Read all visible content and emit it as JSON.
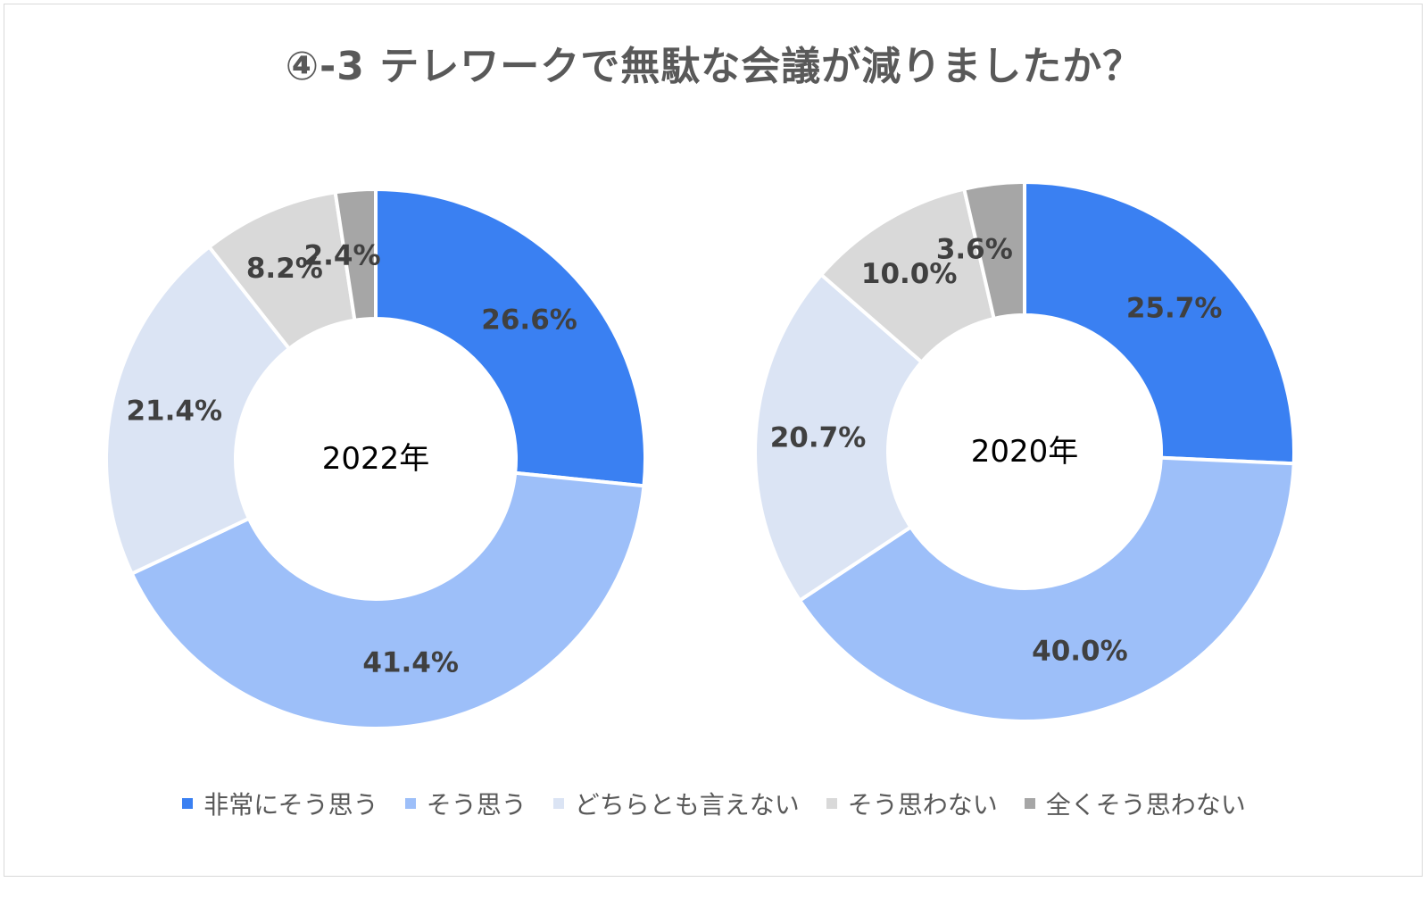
{
  "title": "④-3 テレワークで無駄な会議が減りましたか？",
  "chart_data": [
    {
      "type": "pie",
      "subtype": "donut",
      "center_label": "2022年",
      "categories": [
        "非常にそう思う",
        "そう思う",
        "どちらとも言えない",
        "そう思わない",
        "全くそう思わない"
      ],
      "values": [
        26.6,
        41.4,
        21.4,
        8.2,
        2.4
      ],
      "value_labels": [
        "26.6%",
        "41.4%",
        "21.4%",
        "8.2%",
        "2.4%"
      ]
    },
    {
      "type": "pie",
      "subtype": "donut",
      "center_label": "2020年",
      "categories": [
        "非常にそう思う",
        "そう思う",
        "どちらとも言えない",
        "そう思わない",
        "全くそう思わない"
      ],
      "values": [
        25.7,
        40.0,
        20.7,
        10.0,
        3.6
      ],
      "value_labels": [
        "25.7%",
        "40.0%",
        "20.7%",
        "10.0%",
        "3.6%"
      ]
    }
  ],
  "legend": {
    "position": "bottom",
    "items": [
      {
        "label": "非常にそう思う",
        "color": "#3a80f2"
      },
      {
        "label": "そう思う",
        "color": "#9dbff9"
      },
      {
        "label": "どちらとも言えない",
        "color": "#dbe4f4"
      },
      {
        "label": "そう思わない",
        "color": "#d9d9d9"
      },
      {
        "label": "全くそう思わない",
        "color": "#a6a6a6"
      }
    ]
  }
}
